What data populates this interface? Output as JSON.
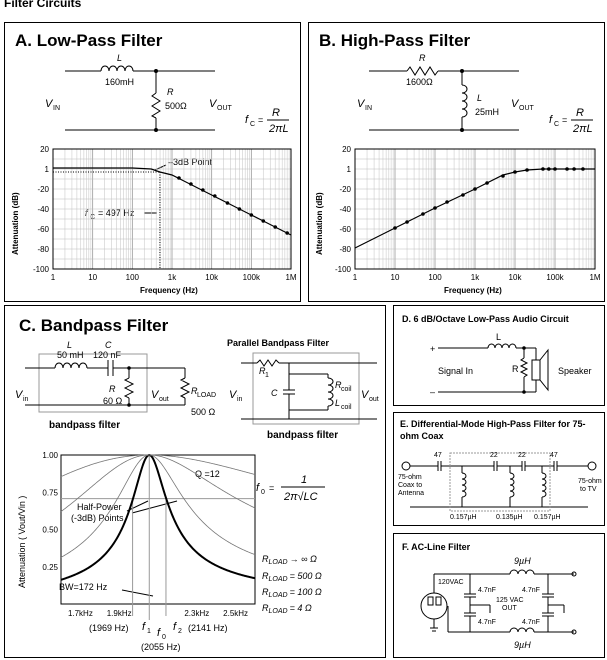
{
  "page_title": "Filter Circuits",
  "panel_a": {
    "title": "A. Low-Pass Filter",
    "inductor": "L",
    "inductor_value": "160mH",
    "resistor": "R",
    "resistor_value": "500Ω",
    "vin": "V",
    "vin_sub": "IN",
    "vout": "V",
    "vout_sub": "OUT",
    "formula_lhs": "f",
    "formula_lhs_sub": "C",
    "formula_eq": "=",
    "formula_num": "R",
    "formula_den": "2πL",
    "annotation_3db": "–3dB  Point",
    "annotation_fc": "f",
    "annotation_fc_sub": "C",
    "annotation_fc_value": "= 497 Hz"
  },
  "panel_b": {
    "title": "B. High-Pass Filter",
    "resistor": "R",
    "resistor_value": "1600Ω",
    "inductor": "L",
    "inductor_value": "25mH",
    "vin": "V",
    "vin_sub": "IN",
    "vout": "V",
    "vout_sub": "OUT",
    "formula_lhs": "f",
    "formula_lhs_sub": "C",
    "formula_eq": "=",
    "formula_num": "R",
    "formula_den": "2πL"
  },
  "panel_c": {
    "title": "C. Bandpass Filter",
    "left_circuit": {
      "inductor": "L",
      "inductor_value": "50 mH",
      "capacitor": "C",
      "capacitor_value": "120 nF",
      "resistor": "R",
      "resistor_value": "60 Ω",
      "vin": "V",
      "vin_sub": "in",
      "vout": "V",
      "vout_sub": "out",
      "load": "R",
      "load_sub": "LOAD",
      "load_value": "500 Ω",
      "caption": "bandpass filter"
    },
    "right_circuit": {
      "title": "Parallel Bandpass Filter",
      "r1": "R",
      "r1_sub": "1",
      "c": "C",
      "rcoil": "R",
      "rcoil_sub": "coil",
      "lcoil": "L",
      "lcoil_sub": "coil",
      "vin": "V",
      "vin_sub": "in",
      "vout": "V",
      "vout_sub": "out",
      "caption": "bandpass filter"
    },
    "q_label": "Q =12",
    "half_power_1": "Half-Power",
    "half_power_2": "(-3dB) Points",
    "bw_label": "BW=172 Hz",
    "formula_lhs": "f",
    "formula_lhs_sub": "0",
    "formula_eq": "=",
    "formula_num": "1",
    "formula_den": "2π√LC",
    "rload_labels": [
      {
        "r": "R",
        "sub": "LOAD",
        "value": "→ ∞ Ω"
      },
      {
        "r": "R",
        "sub": "LOAD",
        "value": "= 500 Ω"
      },
      {
        "r": "R",
        "sub": "LOAD",
        "value": "= 100 Ω"
      },
      {
        "r": "R",
        "sub": "LOAD",
        "value": "= 4 Ω"
      }
    ],
    "f1": "f",
    "f1_sub": "1",
    "f0": "f",
    "f0_sub": "0",
    "f2": "f",
    "f2_sub": "2",
    "f1_value": "(1969 Hz)",
    "f2_value": "(2141 Hz)",
    "f0_value": "(2055 Hz)"
  },
  "panel_d": {
    "title": "D.  6 dB/Octave Low-Pass Audio Circuit",
    "inductor": "L",
    "resistor": "R",
    "plus": "+",
    "minus": "–",
    "signal_in": "Signal In",
    "speaker": "Speaker"
  },
  "panel_e": {
    "title_1": "E.  Differential-Mode High-Pass Filter for 75-",
    "title_2": "ohm Coax",
    "left_label": [
      "75-ohm",
      "Coax to",
      "Antenna"
    ],
    "right_label": [
      "75-ohm",
      "to TV"
    ],
    "caps": [
      "47",
      "22",
      "22",
      "47"
    ],
    "inductors": [
      "0.157µH",
      "0.135µH",
      "0.157µH"
    ]
  },
  "panel_f": {
    "title": "F. AC-Line Filter",
    "voltage": "120VAC",
    "output": [
      "125 VAC",
      "OUT"
    ],
    "inductor_top": "9µH",
    "inductor_bottom": "9µH",
    "caps": [
      "4.7nF",
      "4.7nF",
      "4.7nF",
      "4.7nF"
    ]
  },
  "chart_data": [
    {
      "type": "line",
      "title": "",
      "xlabel": "Frequency (Hz)",
      "ylabel": "Attenuation (dB)",
      "xscale": "log",
      "xlim": [
        1,
        1000000
      ],
      "ylim": [
        -100,
        20
      ],
      "xticks": [
        "1",
        "10",
        "100",
        "1k",
        "10k",
        "100k",
        "1M"
      ],
      "yticks": [
        "20",
        "1",
        "-20",
        "-40",
        "-60",
        "-80",
        "-100"
      ],
      "grid": true,
      "series": [
        {
          "x": [
            1,
            10,
            100,
            300,
            497,
            1000,
            2000,
            5000,
            10000,
            20000,
            50000,
            100000,
            200000,
            500000,
            1000000
          ],
          "y": [
            1,
            1,
            1,
            0,
            -3,
            -6,
            -12,
            -20,
            -26,
            -32,
            -40,
            -46,
            -52,
            -60,
            -66
          ]
        }
      ],
      "points": {
        "x": [
          1500,
          3000,
          6000,
          12000,
          25000,
          50000,
          100000,
          200000,
          400000,
          800000
        ],
        "y": [
          -9,
          -15,
          -21,
          -27,
          -34,
          -40,
          -46,
          -52,
          -58,
          -64
        ]
      }
    },
    {
      "type": "line",
      "title": "",
      "xlabel": "Frequency (Hz)",
      "ylabel": "Attenuation (dB)",
      "xscale": "log",
      "xlim": [
        1,
        1000000
      ],
      "ylim": [
        -100,
        20
      ],
      "xticks": [
        "1",
        "10",
        "100",
        "1k",
        "10k",
        "100k",
        "1M"
      ],
      "yticks": [
        "20",
        "1",
        "-20",
        "-40",
        "-60",
        "-80",
        "-100"
      ],
      "grid": true,
      "series": [
        {
          "x": [
            1,
            10,
            100,
            1000,
            5000,
            10000,
            20000,
            50000,
            100000,
            300000,
            1000000
          ],
          "y": [
            -79,
            -59,
            -39,
            -20,
            -6,
            -3,
            -1,
            0,
            0,
            0,
            0
          ]
        }
      ],
      "points": {
        "x": [
          10,
          20,
          50,
          100,
          200,
          500,
          1000,
          2000,
          5000,
          10000,
          20000,
          50000,
          70000,
          100000,
          200000,
          300000,
          500000
        ],
        "y": [
          -59,
          -53,
          -45,
          -39,
          -33,
          -26,
          -20,
          -14,
          -7,
          -3,
          -1,
          0,
          0,
          0,
          0,
          0,
          0
        ]
      }
    },
    {
      "type": "line",
      "title": "",
      "xlabel": "",
      "ylabel": "Attenuation ( Vout/Vin )",
      "ylim": [
        0,
        1
      ],
      "xlim": [
        1600,
        2600
      ],
      "xticks": [
        "1.7kHz",
        "1.9kHz",
        "2.3kHz",
        "2.5kHz"
      ],
      "yticks": [
        "0",
        "0.25",
        "0.50",
        "0.75",
        "1.00"
      ],
      "f0": 2055,
      "series": [
        {
          "name": "RLOAD → ∞ Ω",
          "q": 12
        },
        {
          "name": "RLOAD = 500 Ω",
          "q": 6
        },
        {
          "name": "RLOAD = 100 Ω",
          "q": 2.5
        },
        {
          "name": "RLOAD = 4 Ω",
          "q": 1.2
        }
      ]
    }
  ]
}
